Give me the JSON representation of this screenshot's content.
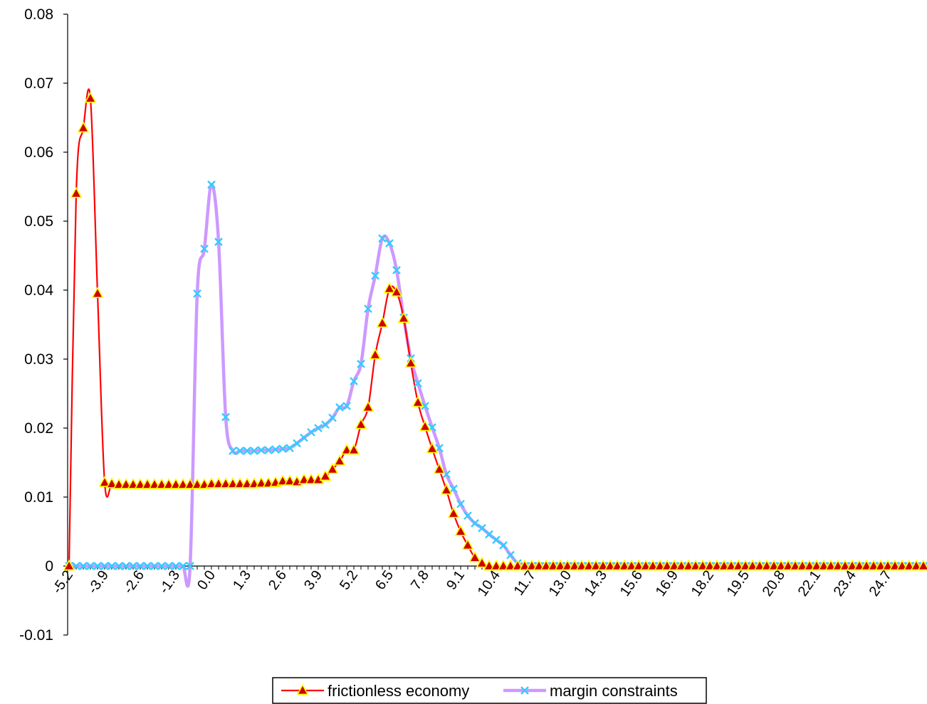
{
  "chart_data": {
    "type": "line",
    "title": "",
    "xlabel": "",
    "ylabel": "",
    "x_start": -5.2,
    "x_step": 0.26,
    "n_points": 121,
    "x_tick_every": 5,
    "x_tick_labels": [
      "-5.2",
      "-3.9",
      "-2.6",
      "-1.3",
      "0.0",
      "1.3",
      "2.6",
      "3.9",
      "5.2",
      "6.5",
      "7.8",
      "9.1",
      "10.4",
      "11.7",
      "13.0",
      "14.3",
      "15.6",
      "16.9",
      "18.2",
      "19.5",
      "20.8",
      "22.1",
      "23.4",
      "24.7"
    ],
    "ylim": [
      -0.01,
      0.08
    ],
    "y_ticks": [
      -0.01,
      0,
      0.01,
      0.02,
      0.03,
      0.04,
      0.05,
      0.06,
      0.07,
      0.08
    ],
    "y_tick_labels": [
      "-0.01",
      "0",
      "0.01",
      "0.02",
      "0.03",
      "0.04",
      "0.05",
      "0.06",
      "0.07",
      "0.08"
    ],
    "grid": false,
    "legend_position": "bottom-center",
    "series": [
      {
        "name": "frictionless economy",
        "line_color": "#ff0000",
        "marker": "triangle",
        "marker_fill": "#cc0000",
        "marker_edge": "#ffff00",
        "values": [
          0,
          0.054,
          0.0635,
          0.0678,
          0.0395,
          0.0121,
          0.0119,
          0.0118,
          0.0118,
          0.0118,
          0.0118,
          0.0118,
          0.0118,
          0.0118,
          0.0118,
          0.0118,
          0.0118,
          0.0118,
          0.0118,
          0.0118,
          0.0119,
          0.0119,
          0.0119,
          0.0119,
          0.0119,
          0.0119,
          0.0119,
          0.012,
          0.012,
          0.0121,
          0.0123,
          0.0123,
          0.0122,
          0.0125,
          0.0125,
          0.0125,
          0.013,
          0.014,
          0.0152,
          0.0168,
          0.0168,
          0.0205,
          0.023,
          0.0306,
          0.0352,
          0.0402,
          0.0397,
          0.0359,
          0.0294,
          0.0237,
          0.0202,
          0.017,
          0.014,
          0.011,
          0.0076,
          0.005,
          0.003,
          0.0012,
          0.0004,
          0,
          0,
          0,
          0,
          0,
          0,
          0,
          0,
          0,
          0,
          0,
          0,
          0,
          0,
          0,
          0,
          0,
          0,
          0,
          0,
          0,
          0,
          0,
          0,
          0,
          0,
          0,
          0,
          0,
          0,
          0,
          0,
          0,
          0,
          0,
          0,
          0,
          0,
          0,
          0,
          0,
          0,
          0,
          0,
          0,
          0,
          0,
          0,
          0,
          0,
          0,
          0,
          0,
          0,
          0,
          0,
          0,
          0,
          0,
          0,
          0,
          0
        ]
      },
      {
        "name": "margin constraints",
        "line_color": "#cc99ff",
        "marker": "x",
        "marker_color": "#33ccff",
        "values": [
          0,
          0,
          0,
          0,
          0,
          0,
          0,
          0,
          0,
          0,
          0,
          0,
          0,
          0,
          0,
          0,
          0,
          0,
          0.0395,
          0.046,
          0.0553,
          0.047,
          0.0216,
          0.0167,
          0.0167,
          0.0167,
          0.0167,
          0.0168,
          0.0168,
          0.0169,
          0.017,
          0.0171,
          0.0178,
          0.0186,
          0.0194,
          0.02,
          0.0205,
          0.0215,
          0.023,
          0.0232,
          0.0268,
          0.0293,
          0.0373,
          0.0421,
          0.0475,
          0.0468,
          0.0429,
          0.036,
          0.0301,
          0.0265,
          0.0232,
          0.0201,
          0.0171,
          0.0133,
          0.0112,
          0.009,
          0.0073,
          0.0062,
          0.0055,
          0.0046,
          0.0038,
          0.003,
          0.0016,
          0.0004,
          0,
          0,
          0,
          0,
          0,
          0,
          0,
          0,
          0,
          0,
          0,
          0,
          0,
          0,
          0,
          0,
          0,
          0,
          0,
          0,
          0,
          0,
          0,
          0,
          0,
          0,
          0,
          0,
          0,
          0,
          0,
          0,
          0,
          0,
          0,
          0,
          0,
          0,
          0,
          0,
          0,
          0,
          0,
          0,
          0,
          0,
          0,
          0,
          0,
          0,
          0,
          0,
          0,
          0,
          0,
          0,
          0,
          0,
          0,
          0,
          0,
          0,
          0
        ]
      }
    ]
  }
}
